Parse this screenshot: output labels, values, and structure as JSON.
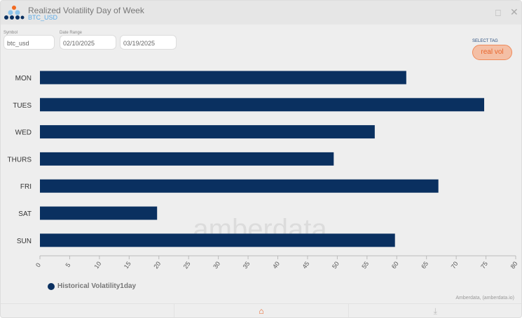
{
  "header": {
    "title": "Realized Volatility Day of Week",
    "subtitle": "BTC_USD"
  },
  "controls": {
    "symbol_label": "Symbol",
    "symbol_value": "btc_usd",
    "date_label": "Date Range",
    "date_start": "02/10/2025",
    "date_end": "03/19/2025",
    "select_tag_label": "SELECT TAG",
    "tag": "real vol"
  },
  "watermark": "amberdata",
  "credit": "Amberdata, (amberdata.io)",
  "colors": {
    "bar": "#0a3060",
    "accent": "#e8652b"
  },
  "chart_data": {
    "type": "bar",
    "orientation": "horizontal",
    "categories": [
      "MON",
      "TUES",
      "WED",
      "THURS",
      "FRI",
      "SAT",
      "SUN"
    ],
    "series": [
      {
        "name": "Historical Volatility1day",
        "values": [
          61.6,
          74.7,
          56.3,
          49.4,
          67.0,
          19.7,
          59.7
        ]
      }
    ],
    "xlim": [
      0,
      80
    ],
    "xticks": [
      "0",
      "5",
      "10",
      "15",
      "20",
      "25",
      "30",
      "35",
      "40",
      "45",
      "50",
      "55",
      "60",
      "65",
      "70",
      "75",
      "80"
    ],
    "legend": "bottom-left",
    "grid": false
  }
}
